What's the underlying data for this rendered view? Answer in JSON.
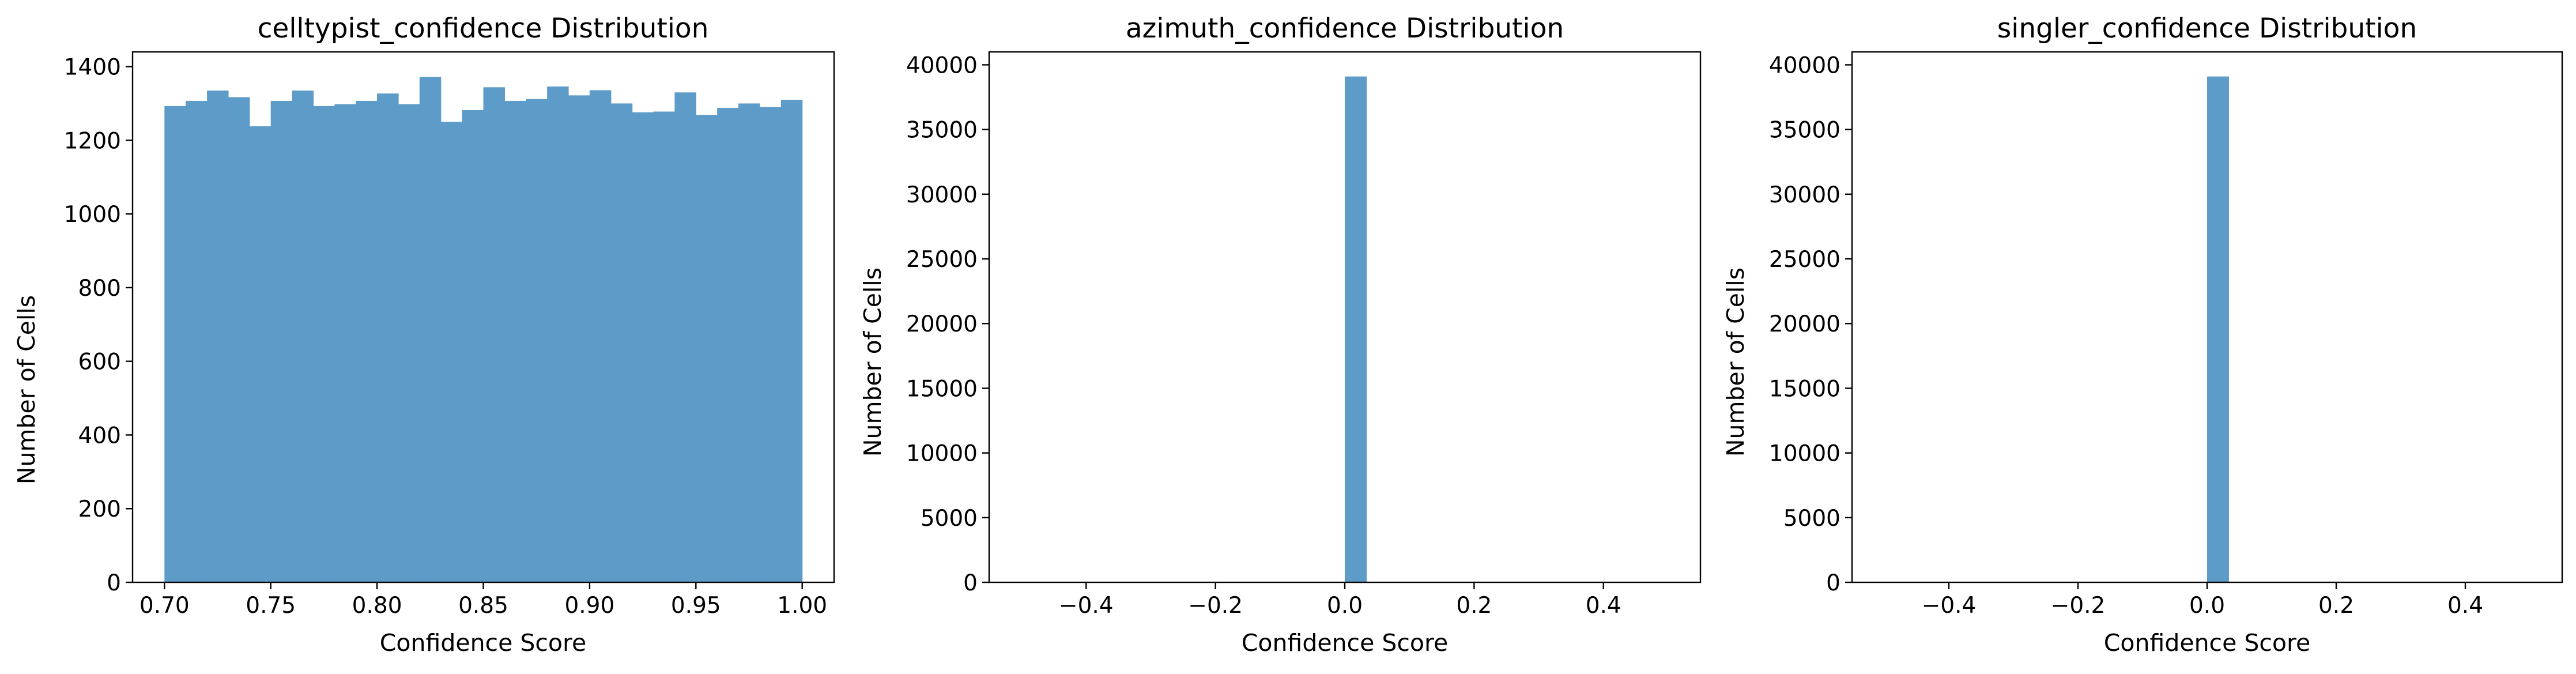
{
  "chart_data": [
    {
      "type": "bar",
      "title": "celltypist_confidence Distribution",
      "xlabel": "Confidence Score",
      "ylabel": "Number of Cells",
      "xlim": [
        0.685,
        1.015
      ],
      "ylim": [
        0,
        1440
      ],
      "xticks": [
        0.7,
        0.75,
        0.8,
        0.85,
        0.9,
        0.95,
        1.0
      ],
      "xtick_labels": [
        "0.70",
        "0.75",
        "0.80",
        "0.85",
        "0.90",
        "0.95",
        "1.00"
      ],
      "yticks": [
        0,
        200,
        400,
        600,
        800,
        1000,
        1200,
        1400
      ],
      "ytick_labels": [
        "0",
        "200",
        "400",
        "600",
        "800",
        "1000",
        "1200",
        "1400"
      ],
      "bin_start": 0.7,
      "bin_end": 1.0,
      "values": [
        1293,
        1307,
        1335,
        1317,
        1238,
        1307,
        1335,
        1293,
        1298,
        1307,
        1327,
        1298,
        1372,
        1250,
        1282,
        1344,
        1307,
        1312,
        1346,
        1322,
        1336,
        1300,
        1276,
        1278,
        1330,
        1269,
        1288,
        1300,
        1290,
        1310
      ],
      "color": "#5d9bc9",
      "grid": false
    },
    {
      "type": "bar",
      "title": "azimuth_confidence Distribution",
      "xlabel": "Confidence Score",
      "ylabel": "Number of Cells",
      "xlim": [
        -0.55,
        0.55
      ],
      "ylim": [
        0,
        41000
      ],
      "xticks": [
        -0.4,
        -0.2,
        0.0,
        0.2,
        0.4
      ],
      "xtick_labels": [
        "−0.4",
        "−0.2",
        "0.0",
        "0.2",
        "0.4"
      ],
      "yticks": [
        0,
        5000,
        10000,
        15000,
        20000,
        25000,
        30000,
        35000,
        40000
      ],
      "ytick_labels": [
        "0",
        "5000",
        "10000",
        "15000",
        "20000",
        "25000",
        "30000",
        "35000",
        "40000"
      ],
      "bin_start": -0.5,
      "bin_end": 0.5,
      "values": [
        0,
        0,
        0,
        0,
        0,
        0,
        0,
        0,
        0,
        0,
        0,
        0,
        0,
        0,
        0,
        39100,
        0,
        0,
        0,
        0,
        0,
        0,
        0,
        0,
        0,
        0,
        0,
        0,
        0,
        0
      ],
      "color": "#5d9bc9",
      "grid": false
    },
    {
      "type": "bar",
      "title": "singler_confidence Distribution",
      "xlabel": "Confidence Score",
      "ylabel": "Number of Cells",
      "xlim": [
        -0.55,
        0.55
      ],
      "ylim": [
        0,
        41000
      ],
      "xticks": [
        -0.4,
        -0.2,
        0.0,
        0.2,
        0.4
      ],
      "xtick_labels": [
        "−0.4",
        "−0.2",
        "0.0",
        "0.2",
        "0.4"
      ],
      "yticks": [
        0,
        5000,
        10000,
        15000,
        20000,
        25000,
        30000,
        35000,
        40000
      ],
      "ytick_labels": [
        "0",
        "5000",
        "10000",
        "15000",
        "20000",
        "25000",
        "30000",
        "35000",
        "40000"
      ],
      "bin_start": -0.5,
      "bin_end": 0.5,
      "values": [
        0,
        0,
        0,
        0,
        0,
        0,
        0,
        0,
        0,
        0,
        0,
        0,
        0,
        0,
        0,
        39100,
        0,
        0,
        0,
        0,
        0,
        0,
        0,
        0,
        0,
        0,
        0,
        0,
        0,
        0
      ],
      "color": "#5d9bc9",
      "grid": false
    }
  ]
}
